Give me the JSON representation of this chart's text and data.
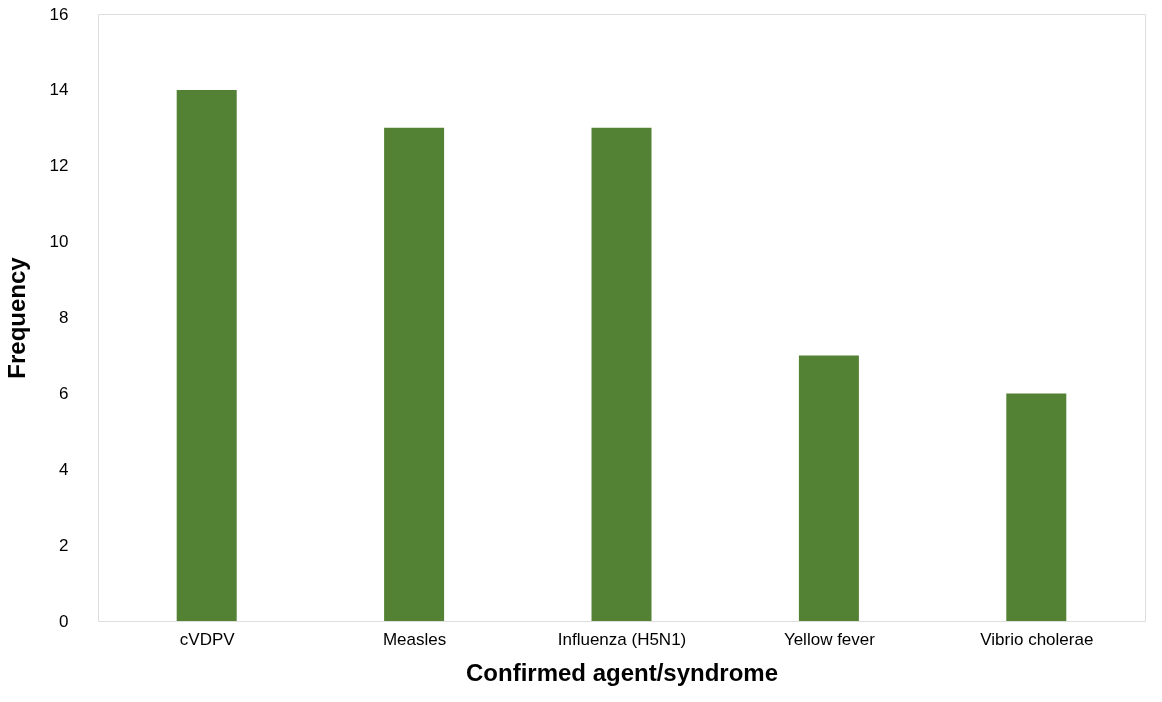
{
  "chart_data": {
    "type": "bar",
    "xlabel": "Confirmed agent/syndrome",
    "ylabel": "Frequency",
    "categories": [
      "cVDPV",
      "Measles",
      "Influenza (H5N1)",
      "Yellow fever",
      "Vibrio cholerae"
    ],
    "values": [
      14,
      13,
      13,
      7,
      6
    ],
    "color": "#548235",
    "ylim": [
      0,
      16
    ],
    "yticks": [
      0,
      2,
      4,
      6,
      8,
      10,
      12,
      14,
      16
    ],
    "grid": false
  }
}
